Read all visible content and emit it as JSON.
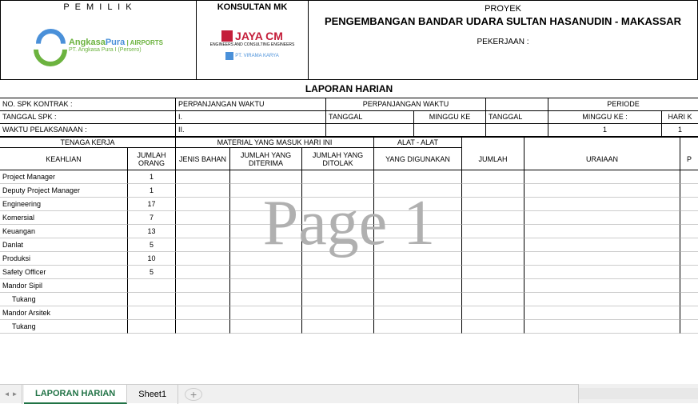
{
  "header": {
    "owner_label": "P E M I L I K",
    "owner_name_1": "Angkasa",
    "owner_name_2": "Pura",
    "owner_airports": " | AIRPORTS",
    "owner_sub": "PT. Angkasa Pura I (Persero)",
    "consultant_label": "KONSULTAN MK",
    "consultant_name": "JAYA CM",
    "consultant_sub": "ENGINEERS AND CONSULTING ENGINEERS",
    "consultant_2": "PT. VIRAMA KARYA",
    "project_label": "PROYEK",
    "project_name": "PENGEMBANGAN BANDAR UDARA SULTAN HASANUDIN - MAKASSAR",
    "project_job_label": "PEKERJAAN :"
  },
  "report_title": "LAPORAN HARIAN",
  "info": {
    "row1": {
      "label1": "NO. SPK KONTRAK :",
      "label2": "PERPANJANGAN WAKTU",
      "label3": "PERPANJANGAN WAKTU",
      "label4": "PERIODE"
    },
    "row2": {
      "label1": "TANGGAL SPK :",
      "label2": "I.",
      "label3": "TANGGAL",
      "label4": "MINGGU KE",
      "label5": "TANGGAL",
      "label6": "MINGGU KE :",
      "label7": "HARI K"
    },
    "row3": {
      "label1": "WAKTU PELAKSANAAN :",
      "label2": "II.",
      "val1": "1",
      "val2": "1"
    }
  },
  "table": {
    "headers": {
      "tenaga": "TENAGA KERJA",
      "keahlian": "KEAHLIAN",
      "jumlah_orang": "JUMLAH ORANG",
      "material": "MATERIAL YANG MASUK HARI INI",
      "jenis_bahan": "JENIS BAHAN",
      "jumlah_diterima": "JUMLAH YANG DITERIMA",
      "jumlah_ditolak": "JUMLAH YANG DITOLAK",
      "alat": "ALAT - ALAT",
      "yang_digunakan": "YANG DIGUNAKAN",
      "jumlah": "JUMLAH",
      "uraian": "URAIAAN",
      "p": "P"
    },
    "rows": [
      {
        "keahlian": "Project Manager",
        "jumlah": "1"
      },
      {
        "keahlian": "Deputy Project Manager",
        "jumlah": "1"
      },
      {
        "keahlian": "Engineering",
        "jumlah": "17"
      },
      {
        "keahlian": "Komersial",
        "jumlah": "7"
      },
      {
        "keahlian": "Keuangan",
        "jumlah": "13"
      },
      {
        "keahlian": "Danlat",
        "jumlah": "5"
      },
      {
        "keahlian": "Produksi",
        "jumlah": "10"
      },
      {
        "keahlian": "Safety Officer",
        "jumlah": "5"
      },
      {
        "keahlian": "Mandor Sipil",
        "jumlah": ""
      },
      {
        "keahlian": "Tukang",
        "jumlah": "",
        "indent": true
      },
      {
        "keahlian": "Mandor Arsitek",
        "jumlah": ""
      },
      {
        "keahlian": "Tukang",
        "jumlah": "",
        "indent": true
      }
    ]
  },
  "watermark": "Page 1",
  "tabs": {
    "active": "LAPORAN HARIAN",
    "other": "Sheet1"
  },
  "cols": {
    "keahlian": 160,
    "jumlah_orang": 60,
    "jenis_bahan": 68,
    "jumlah_diterima": 90,
    "jumlah_ditolak": 90,
    "yang_digunakan": 110,
    "jumlah": 78,
    "uraian": 195,
    "p": 22
  }
}
